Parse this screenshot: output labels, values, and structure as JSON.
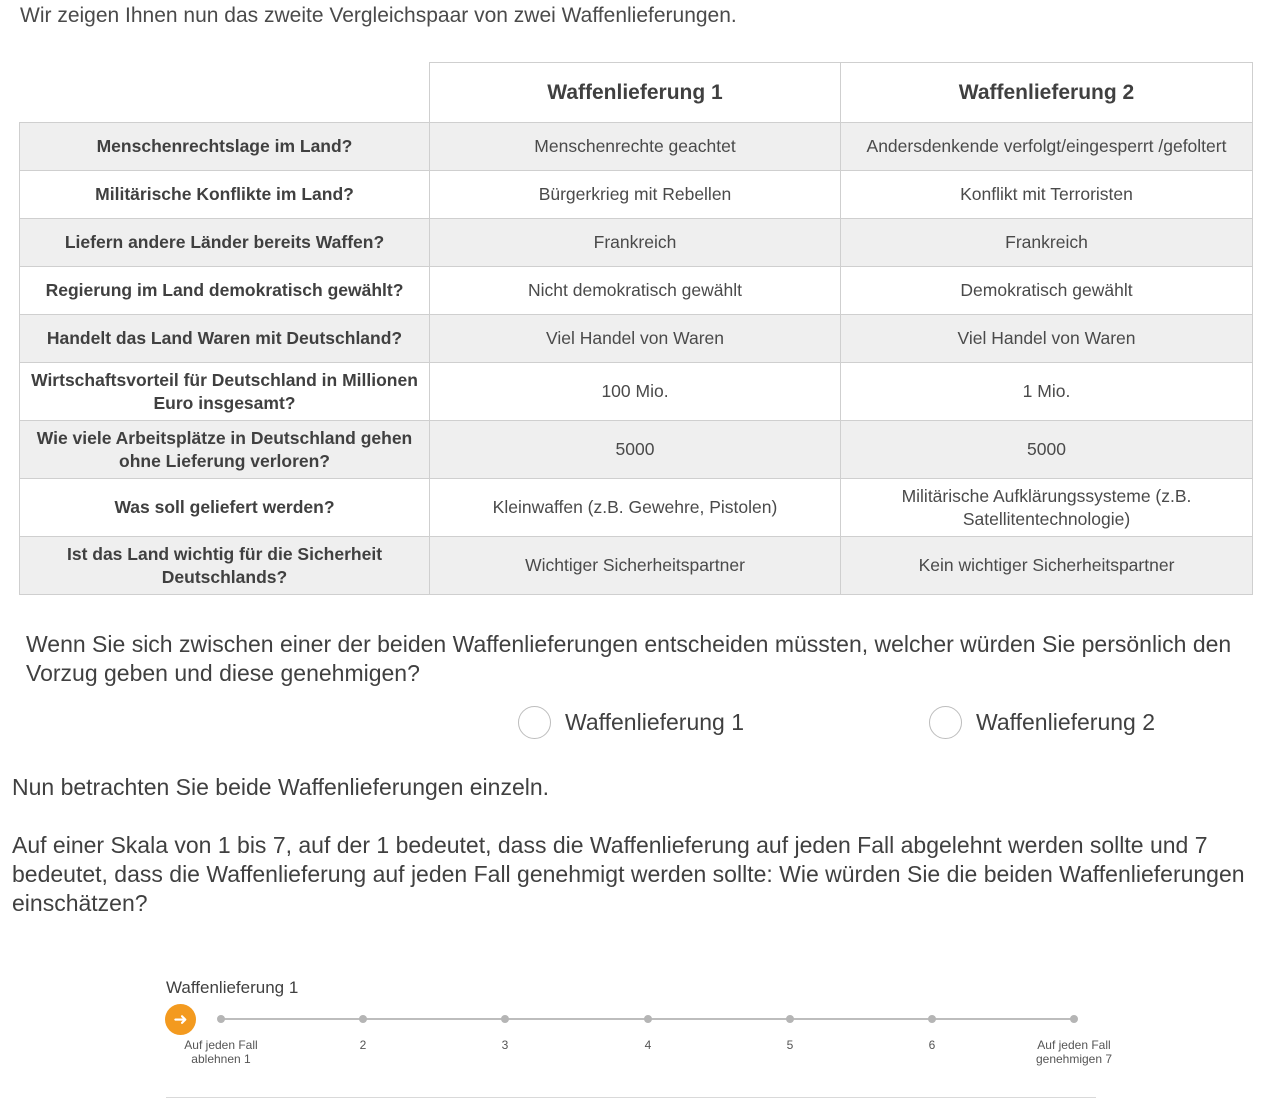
{
  "intro": "Wir zeigen Ihnen nun das zweite Vergleichspaar von zwei Waffenlieferungen.",
  "table": {
    "headers": [
      "",
      "Waffenlieferung 1",
      "Waffenlieferung 2"
    ],
    "rows": [
      {
        "label": "Menschenrechtslage im Land?",
        "v1": "Menschenrechte geachtet",
        "v2": "Andersdenkende verfolgt/eingesperrt /gefoltert"
      },
      {
        "label": "Militärische Konflikte im Land?",
        "v1": "Bürgerkrieg mit Rebellen",
        "v2": "Konflikt mit Terroristen"
      },
      {
        "label": "Liefern andere Länder bereits Waffen?",
        "v1": "Frankreich",
        "v2": "Frankreich"
      },
      {
        "label": "Regierung im Land demokratisch gewählt?",
        "v1": "Nicht demokratisch gewählt",
        "v2": "Demokratisch gewählt"
      },
      {
        "label": "Handelt das Land Waren mit Deutschland?",
        "v1": "Viel Handel von Waren",
        "v2": "Viel Handel von Waren"
      },
      {
        "label": "Wirtschaftsvorteil für Deutschland in Millionen Euro insgesamt?",
        "v1": "100 Mio.",
        "v2": "1 Mio."
      },
      {
        "label": "Wie viele Arbeitsplätze in Deutschland gehen ohne Lieferung verloren?",
        "v1": "5000",
        "v2": "5000"
      },
      {
        "label": "Was soll geliefert werden?",
        "v1": "Kleinwaffen (z.B. Gewehre, Pistolen)",
        "v2": "Militärische Aufklärungssysteme (z.B. Satellitentechnologie)"
      },
      {
        "label": "Ist das Land wichtig für die Sicherheit Deutschlands?",
        "v1": "Wichtiger Sicherheitspartner",
        "v2": "Kein wichtiger Sicherheitspartner"
      }
    ]
  },
  "question": "Wenn Sie sich zwischen einer der beiden Waffenlieferungen entscheiden müssten, welcher würden Sie persönlich den Vorzug geben und diese genehmigen?",
  "options": [
    "Waffenlieferung 1",
    "Waffenlieferung 2"
  ],
  "para1": "Nun betrachten Sie beide Waffenlieferungen einzeln.",
  "para2": "Auf einer Skala von 1 bis 7, auf der 1 bedeutet, dass die Waffenlieferung auf jeden Fall abgelehnt werden sollte und 7 bedeutet, dass die Waffenlieferung auf jeden Fall genehmigt werden sollte: Wie würden Sie die beiden Waffenlieferungen einschätzen?",
  "slider": {
    "title": "Waffenlieferung 1",
    "labels": [
      "Auf jeden Fall\nablehnen 1",
      "2",
      "3",
      "4",
      "5",
      "6",
      "Auf jeden Fall\ngenehmigen 7"
    ],
    "handle_icon": "arrow-right-icon",
    "accent": "#f39a1f"
  }
}
